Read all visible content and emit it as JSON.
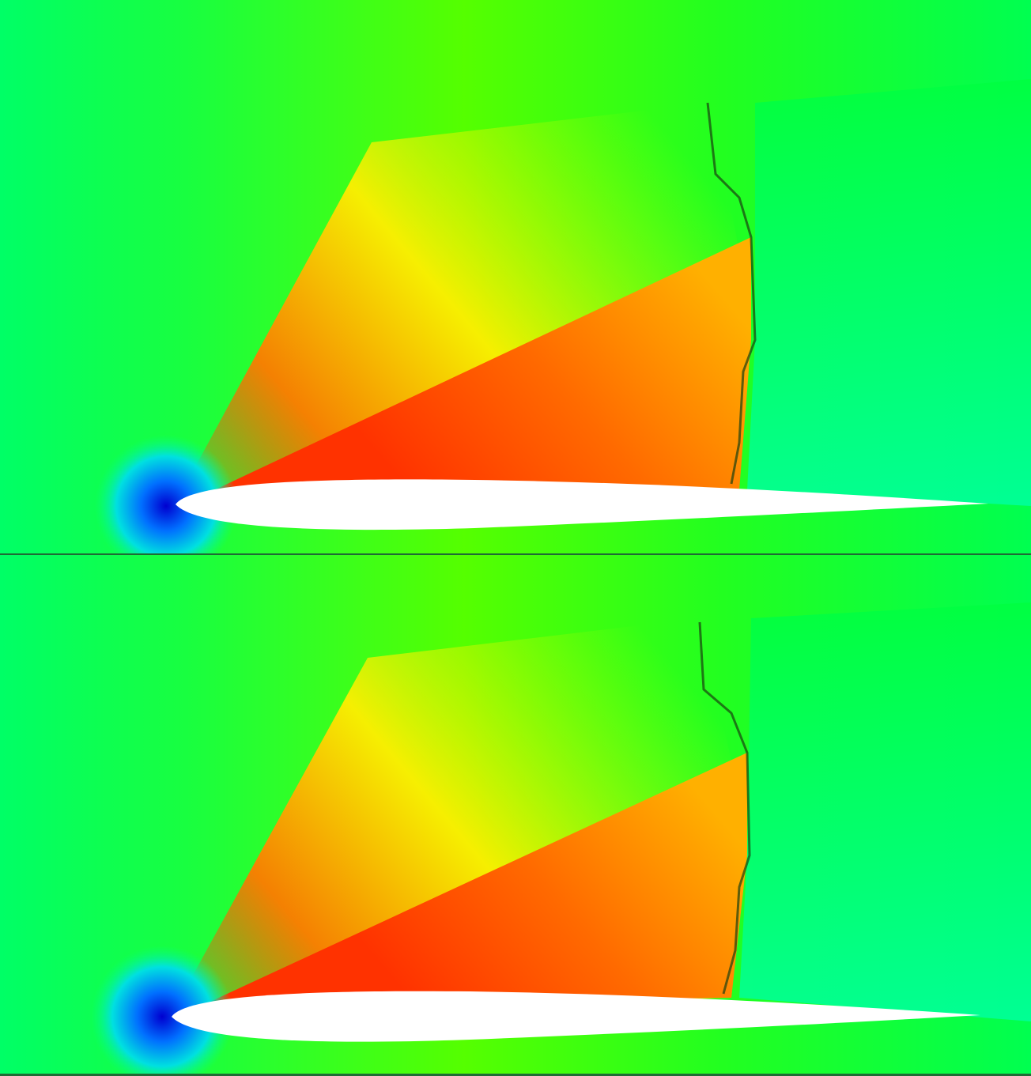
{
  "figure": {
    "panels": [
      {
        "id": "top",
        "subject": "airfoil-pressure-field"
      },
      {
        "id": "bottom",
        "subject": "airfoil-pressure-field"
      }
    ],
    "colors": {
      "far_field": "#00ff4c",
      "upstream": "#00ff73",
      "shock_downstream": "#00ff90",
      "expansion_yellow": "#ffff00",
      "high_red": "#ff3a00",
      "stagnation_blue": "#0000d8",
      "airfoil": "#ffffff"
    }
  }
}
